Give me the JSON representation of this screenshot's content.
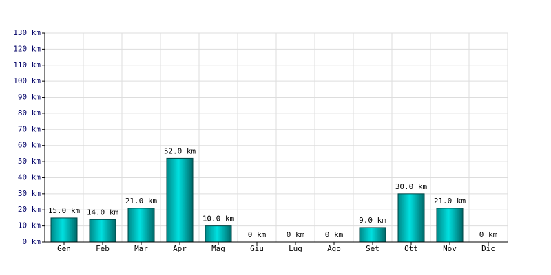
{
  "chart_data": {
    "type": "bar",
    "categories": [
      "Gen",
      "Feb",
      "Mar",
      "Apr",
      "Mag",
      "Giu",
      "Lug",
      "Ago",
      "Set",
      "Ott",
      "Nov",
      "Dic"
    ],
    "values": [
      15,
      14,
      21,
      52,
      10,
      0,
      0,
      0,
      9,
      30,
      21,
      0
    ],
    "value_labels": [
      "15.0 km",
      "14.0 km",
      "21.0 km",
      "52.0 km",
      "10.0 km",
      "0 km",
      "0 km",
      "0 km",
      "9.0 km",
      "30.0 km",
      "21.0 km",
      "0 km"
    ],
    "color": "#00e0e0",
    "ylim": [
      0,
      130
    ],
    "yticks": [
      {
        "value": 0,
        "label": "0 km"
      },
      {
        "value": 10,
        "label": "10 km"
      },
      {
        "value": 20,
        "label": "20 km"
      },
      {
        "value": 30,
        "label": "30 km"
      },
      {
        "value": 40,
        "label": "40 km"
      },
      {
        "value": 50,
        "label": "50 km"
      },
      {
        "value": 60,
        "label": "60 km"
      },
      {
        "value": 70,
        "label": "70 km"
      },
      {
        "value": 80,
        "label": "80 km"
      },
      {
        "value": 90,
        "label": "90 km"
      },
      {
        "value": 100,
        "label": "100 km"
      },
      {
        "value": 110,
        "label": "110 km"
      },
      {
        "value": 120,
        "label": "120 km"
      },
      {
        "value": 130,
        "label": "130 km"
      }
    ],
    "grid": true
  }
}
